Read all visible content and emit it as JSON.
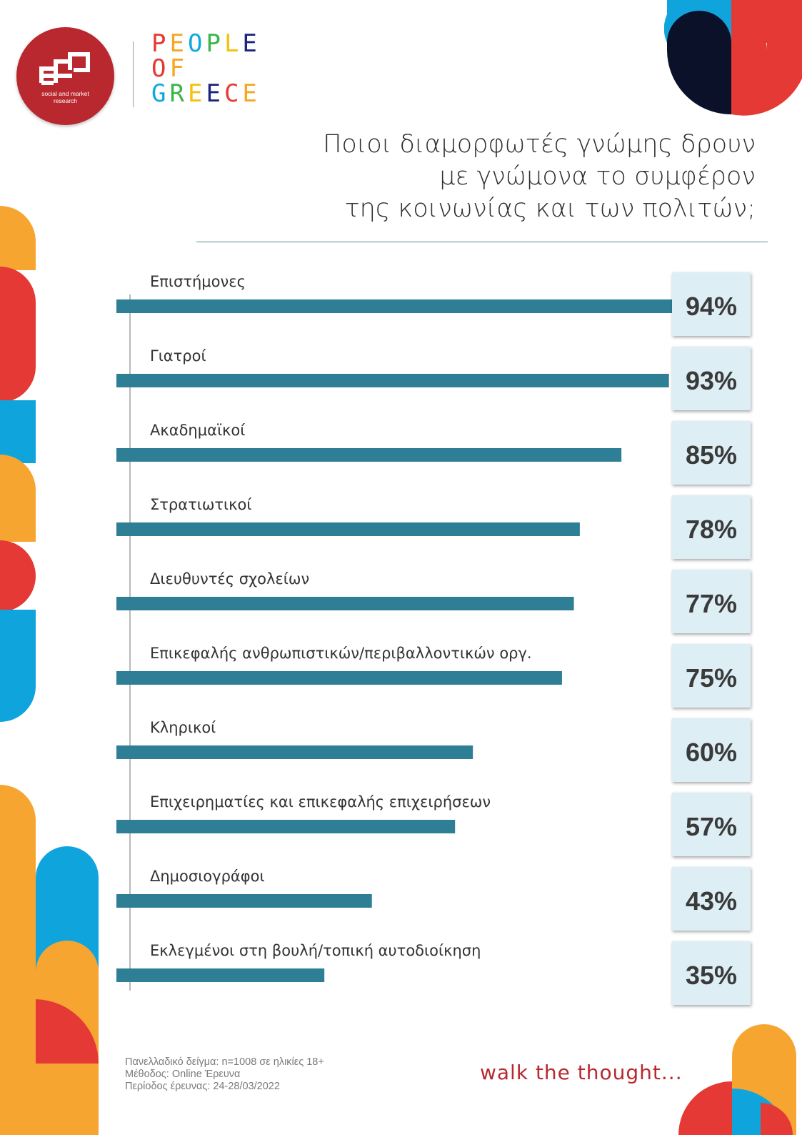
{
  "header": {
    "logo_caption": "social and market research",
    "brand_lines": [
      "PEOPLE",
      "OF",
      "GREECE"
    ],
    "brand_colors": [
      "#e53935",
      "#f5a623",
      "#0fa8e0",
      "#3ab54a",
      "#f4c20d",
      "#1a237e"
    ]
  },
  "title_lines": [
    "Ποιοι διαμορφωτές γνώμης δρουν",
    "με γνώμονα το συμφέρον",
    "της κοινωνίας και των πολιτών;"
  ],
  "chart_data": {
    "type": "bar",
    "orientation": "horizontal",
    "bar_color": "#2e7f96",
    "value_box_color": "#ddeef4",
    "categories": [
      "Επιστήμονες",
      "Γιατροί",
      "Ακαδημαϊκοί",
      "Στρατιωτικοί",
      "Διευθυντές σχολείων",
      "Επικεφαλής ανθρωπιστικών/περιβαλλοντικών οργ.",
      "Κληρικοί",
      "Επιχειρηματίες και επικεφαλής επιχειρήσεων",
      "Δημοσιογράφοι",
      "Εκλεγμένοι στη βουλή/τοπική αυτοδιοίκηση"
    ],
    "values": [
      94,
      93,
      85,
      78,
      77,
      75,
      60,
      57,
      43,
      35
    ],
    "value_labels": [
      "94%",
      "93%",
      "85%",
      "78%",
      "77%",
      "75%",
      "60%",
      "57%",
      "43%",
      "35%"
    ],
    "unit": "%"
  },
  "footer": {
    "notes": [
      "Πανελλαδικό δείγμα: n=1008 σε ηλικίες 18+",
      "Μέθοδος: Online Έρευνα",
      "Περίοδος έρευνας: 24-28/03/2022"
    ],
    "slogan": "walk the thought..."
  },
  "decor_colors": {
    "red": "#e53935",
    "orange": "#f7a531",
    "blue": "#10a4dd",
    "navy": "#0a1128"
  }
}
